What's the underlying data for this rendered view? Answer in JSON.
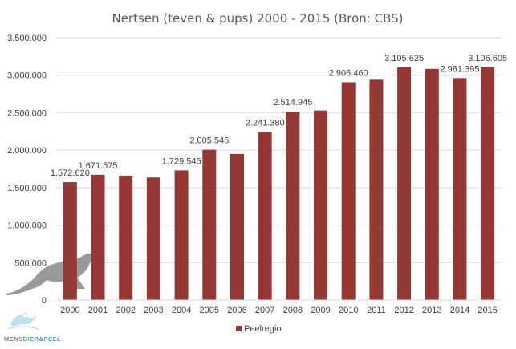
{
  "chart_data": {
    "type": "bar",
    "title": "Nertsen (teven & pups) 2000 - 2015 (Bron: CBS)",
    "categories": [
      "2000",
      "2001",
      "2002",
      "2003",
      "2004",
      "2005",
      "2006",
      "2007",
      "2008",
      "2009",
      "2010",
      "2011",
      "2012",
      "2013",
      "2014",
      "2015"
    ],
    "series": [
      {
        "name": "Peelregio",
        "color": "#953735",
        "values": [
          1572620,
          1671575,
          1660000,
          1635000,
          1729545,
          2005545,
          1950000,
          2241380,
          2514945,
          2530000,
          2906460,
          2940000,
          3105625,
          3085000,
          2961395,
          3106605
        ]
      }
    ],
    "data_labels": [
      {
        "index": 0,
        "text": "1.572.620"
      },
      {
        "index": 1,
        "text": "1.671.575"
      },
      {
        "index": 4,
        "text": "1.729.545"
      },
      {
        "index": 5,
        "text": "2.005.545"
      },
      {
        "index": 7,
        "text": "2.241.380"
      },
      {
        "index": 8,
        "text": "2.514.945"
      },
      {
        "index": 10,
        "text": "2.906.460"
      },
      {
        "index": 12,
        "text": "3.105.625"
      },
      {
        "index": 14,
        "text": "2.961.395"
      },
      {
        "index": 15,
        "text": "3.106.605"
      }
    ],
    "ylim": [
      0,
      3500000
    ],
    "yticks": [
      {
        "value": 0,
        "label": "0"
      },
      {
        "value": 500000,
        "label": "500.000"
      },
      {
        "value": 1000000,
        "label": "1.000.000"
      },
      {
        "value": 1500000,
        "label": "1.500.000"
      },
      {
        "value": 2000000,
        "label": "2.000.000"
      },
      {
        "value": 2500000,
        "label": "2.500.000"
      },
      {
        "value": 3000000,
        "label": "3.000.000"
      },
      {
        "value": 3500000,
        "label": "3.500.000"
      }
    ],
    "grid": true,
    "legend_position": "bottom"
  },
  "logo": {
    "text_parts": [
      "MENS",
      "DIER",
      "&",
      "PEEL"
    ],
    "colors": [
      "#7f7f7f",
      "#4e9fc4",
      "#7f7f7f",
      "#4e9fc4"
    ]
  }
}
